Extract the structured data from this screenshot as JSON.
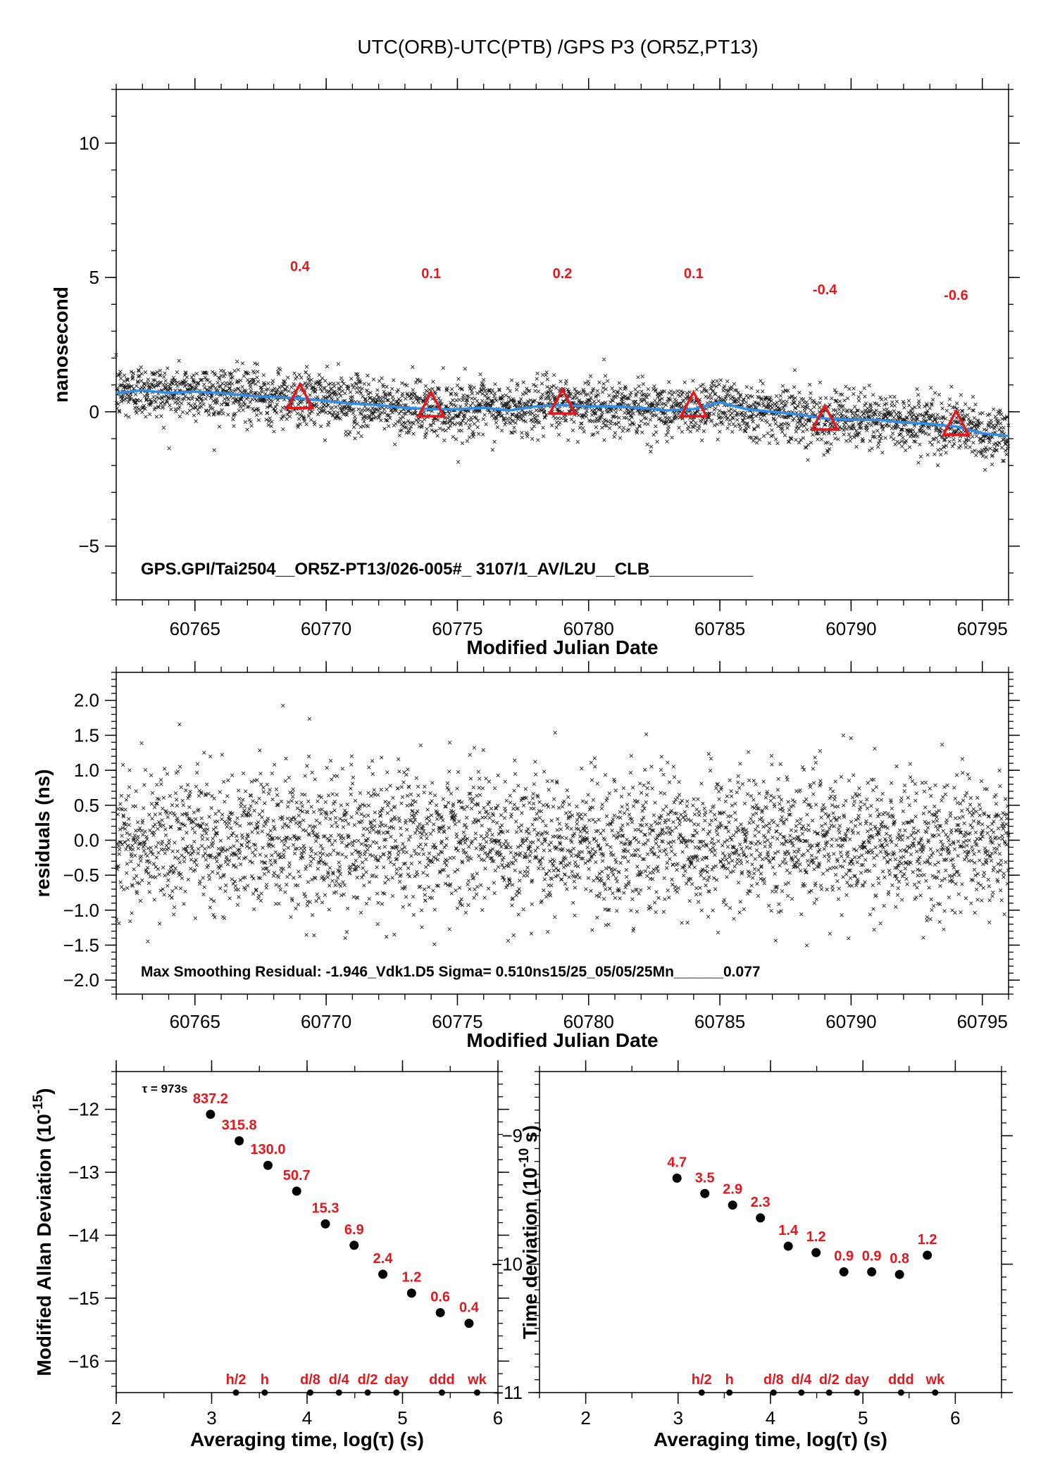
{
  "title": "UTC(ORB)-UTC(PTB)  /GPS  P3  (OR5Z,PT13)",
  "chart_data": [
    {
      "type": "scatter",
      "ylabel": "nanosecond",
      "xlabel": "Modified Julian Date",
      "xlim": [
        60762,
        60796
      ],
      "ylim": [
        -7,
        12
      ],
      "xticks": [
        "60765",
        "60770",
        "60775",
        "60780",
        "60785",
        "60790",
        "60795"
      ],
      "yticks": [
        "−5",
        "0",
        "5",
        "10"
      ],
      "ytick_values": [
        -5,
        0,
        5,
        10
      ],
      "note": "GPS.GPI/Tai2504__OR5Z-PT13/026-005#_  3107/1_AV/L2U__CLB___________",
      "smooth_curve": {
        "x": [
          60762,
          60763,
          60764,
          60765,
          60766,
          60767,
          60768,
          60769,
          60770,
          60771,
          60772,
          60773,
          60774,
          60775,
          60776,
          60777,
          60778,
          60779,
          60780,
          60781,
          60782,
          60783,
          60784,
          60785,
          60786,
          60787,
          60788,
          60789,
          60790,
          60791,
          60792,
          60793,
          60794,
          60795,
          60796
        ],
        "y": [
          0.7,
          0.8,
          0.7,
          0.75,
          0.7,
          0.6,
          0.55,
          0.5,
          0.4,
          0.3,
          0.25,
          0.15,
          0.1,
          0.1,
          0.15,
          0.05,
          0.2,
          0.25,
          0.2,
          0.2,
          0.15,
          0.05,
          0.1,
          0.35,
          0.1,
          0.0,
          -0.1,
          -0.25,
          -0.3,
          -0.3,
          -0.4,
          -0.45,
          -0.55,
          -0.8,
          -0.9
        ]
      },
      "markers": [
        {
          "x": 60769,
          "y": 0.4,
          "label": "0.4"
        },
        {
          "x": 60774,
          "y": 0.1,
          "label": "0.1"
        },
        {
          "x": 60779,
          "y": 0.2,
          "label": "0.2"
        },
        {
          "x": 60784,
          "y": 0.1,
          "label": "0.1"
        },
        {
          "x": 60789,
          "y": -0.4,
          "label": "-0.4"
        },
        {
          "x": 60794,
          "y": -0.6,
          "label": "-0.6"
        }
      ],
      "scatter_spread_ns": 0.51,
      "point_interval_days": 0.0104,
      "colors": {
        "points": "#000000",
        "curve": "#2f8fe8",
        "markers": "#e8161c"
      }
    },
    {
      "type": "scatter",
      "ylabel": "residuals (ns)",
      "xlabel": "Modified Julian Date",
      "xlim": [
        60762,
        60796
      ],
      "ylim": [
        -2.2,
        2.4
      ],
      "xticks": [
        "60765",
        "60770",
        "60775",
        "60780",
        "60785",
        "60790",
        "60795"
      ],
      "yticks": [
        "−2.0",
        "−1.5",
        "−1.0",
        "−0.5",
        "0.0",
        "0.5",
        "1.0",
        "1.5",
        "2.0"
      ],
      "ytick_values": [
        -2.0,
        -1.5,
        -1.0,
        -0.5,
        0.0,
        0.5,
        1.0,
        1.5,
        2.0
      ],
      "note": "Max Smoothing Residual: -1.946_Vdk1.D5  Sigma= 0.510ns15/25_05/05/25Mn______0.077",
      "sigma": 0.51
    },
    {
      "type": "scatter",
      "ylabel": "Modified Allan Deviation (10",
      "ylabel_exp": "-15",
      "ylabel_end": ")",
      "xlabel": "Averaging time, log(τ) (s)",
      "xlim": [
        2,
        6
      ],
      "ylim": [
        -16.5,
        -11.4
      ],
      "xticks": [
        "2",
        "3",
        "4",
        "5",
        "6"
      ],
      "yticks": [
        "−12",
        "−13",
        "−14",
        "−15",
        "−16"
      ],
      "ytick_values": [
        -12,
        -13,
        -14,
        -15,
        -16
      ],
      "tau_note": "τ = 973s",
      "points": [
        {
          "x": 2.988,
          "y": -12.08,
          "label": "837.2"
        },
        {
          "x": 3.289,
          "y": -12.5,
          "label": "315.8"
        },
        {
          "x": 3.59,
          "y": -12.89,
          "label": "130.0"
        },
        {
          "x": 3.891,
          "y": -13.3,
          "label": "50.7"
        },
        {
          "x": 4.192,
          "y": -13.82,
          "label": "15.3"
        },
        {
          "x": 4.493,
          "y": -14.16,
          "label": "6.9"
        },
        {
          "x": 4.794,
          "y": -14.62,
          "label": "2.4"
        },
        {
          "x": 5.095,
          "y": -14.92,
          "label": "1.2"
        },
        {
          "x": 5.396,
          "y": -15.23,
          "label": "0.6"
        },
        {
          "x": 5.697,
          "y": -15.4,
          "label": "0.4"
        }
      ],
      "time_markers": [
        {
          "x": 3.255,
          "label": "h/2"
        },
        {
          "x": 3.556,
          "label": "h"
        },
        {
          "x": 4.033,
          "label": "d/8"
        },
        {
          "x": 4.334,
          "label": "d/4"
        },
        {
          "x": 4.635,
          "label": "d/2"
        },
        {
          "x": 4.936,
          "label": "day"
        },
        {
          "x": 5.413,
          "label": "ddd"
        },
        {
          "x": 5.782,
          "label": "wk"
        }
      ]
    },
    {
      "type": "scatter",
      "ylabel": "Time deviation (10",
      "ylabel_exp": "-10",
      "ylabel_end": " s)",
      "xlabel": "Averaging time, log(τ) (s)",
      "xlim": [
        1.5,
        6.5
      ],
      "ylim": [
        -11,
        -8.5
      ],
      "xticks": [
        "2",
        "3",
        "4",
        "5",
        "6"
      ],
      "xtick_values": [
        2,
        3,
        4,
        5,
        6
      ],
      "yticks": [
        "−9",
        "−10",
        "−11"
      ],
      "ytick_values": [
        -9,
        -10,
        -11
      ],
      "points": [
        {
          "x": 2.988,
          "y": -9.33,
          "label": "4.7"
        },
        {
          "x": 3.289,
          "y": -9.45,
          "label": "3.5"
        },
        {
          "x": 3.59,
          "y": -9.54,
          "label": "2.9"
        },
        {
          "x": 3.891,
          "y": -9.64,
          "label": "2.3"
        },
        {
          "x": 4.192,
          "y": -9.86,
          "label": "1.4"
        },
        {
          "x": 4.493,
          "y": -9.91,
          "label": "1.2"
        },
        {
          "x": 4.794,
          "y": -10.06,
          "label": "0.9"
        },
        {
          "x": 5.095,
          "y": -10.06,
          "label": "0.9"
        },
        {
          "x": 5.396,
          "y": -10.08,
          "label": "0.8"
        },
        {
          "x": 5.697,
          "y": -9.93,
          "label": "1.2"
        }
      ],
      "time_markers": [
        {
          "x": 3.255,
          "label": "h/2"
        },
        {
          "x": 3.556,
          "label": "h"
        },
        {
          "x": 4.033,
          "label": "d/8"
        },
        {
          "x": 4.334,
          "label": "d/4"
        },
        {
          "x": 4.635,
          "label": "d/2"
        },
        {
          "x": 4.936,
          "label": "day"
        },
        {
          "x": 5.413,
          "label": "ddd"
        },
        {
          "x": 5.782,
          "label": "wk"
        }
      ]
    }
  ]
}
